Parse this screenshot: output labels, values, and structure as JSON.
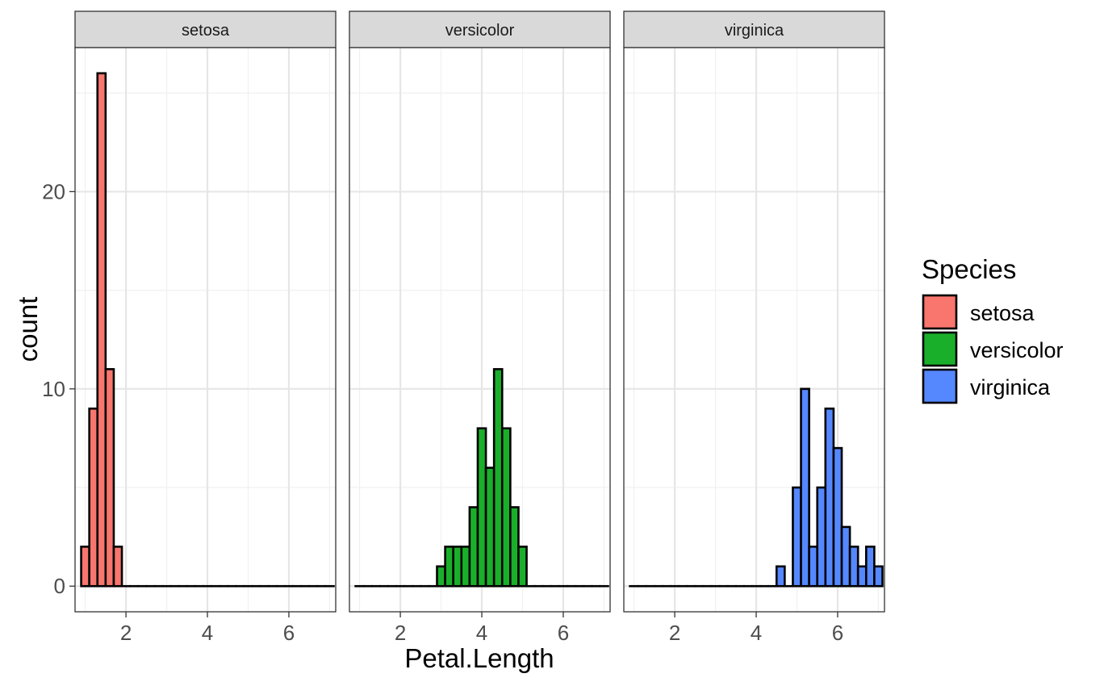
{
  "chart_data": {
    "type": "bar",
    "subtype": "faceted-histogram",
    "xlabel": "Petal.Length",
    "ylabel": "count",
    "xlim": [
      0.75,
      7.15
    ],
    "ylim": [
      -1.3,
      27.3
    ],
    "x_ticks": [
      2,
      4,
      6
    ],
    "y_ticks": [
      0,
      10,
      20
    ],
    "x_minor_ticks": [
      1,
      3,
      5,
      7
    ],
    "y_minor_ticks": [
      5,
      15,
      25
    ],
    "grid": true,
    "legend": {
      "title": "Species",
      "position": "right",
      "items": [
        {
          "label": "setosa",
          "color": "#F8766D"
        },
        {
          "label": "versicolor",
          "color": "#1AAF2A"
        },
        {
          "label": "virginica",
          "color": "#5588FF"
        }
      ]
    },
    "bins": {
      "start": 0.9,
      "width": 0.2,
      "count": 31
    },
    "facets": [
      {
        "name": "setosa",
        "color": "#F8766D",
        "counts": [
          2,
          9,
          26,
          11,
          2,
          0,
          0,
          0,
          0,
          0,
          0,
          0,
          0,
          0,
          0,
          0,
          0,
          0,
          0,
          0,
          0,
          0,
          0,
          0,
          0,
          0,
          0,
          0,
          0,
          0,
          0
        ]
      },
      {
        "name": "versicolor",
        "color": "#1AAF2A",
        "counts": [
          0,
          0,
          0,
          0,
          0,
          0,
          0,
          0,
          0,
          0,
          1,
          2,
          2,
          2,
          4,
          8,
          6,
          11,
          8,
          4,
          2,
          0,
          0,
          0,
          0,
          0,
          0,
          0,
          0,
          0,
          0
        ]
      },
      {
        "name": "virginica",
        "color": "#5588FF",
        "counts": [
          0,
          0,
          0,
          0,
          0,
          0,
          0,
          0,
          0,
          0,
          0,
          0,
          0,
          0,
          0,
          0,
          0,
          0,
          1,
          0,
          5,
          10,
          2,
          5,
          9,
          7,
          3,
          2,
          1,
          2,
          1
        ]
      }
    ]
  }
}
